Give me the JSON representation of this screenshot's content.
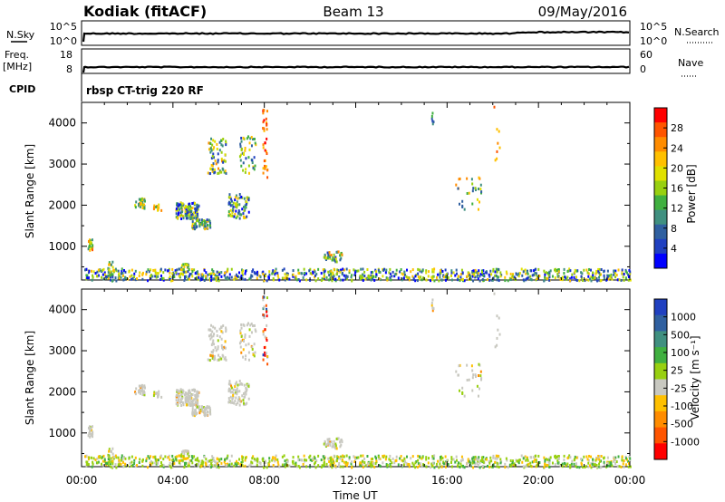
{
  "header": {
    "station": "Kodiak (fitACF)",
    "beam": "Beam 13",
    "date": "09/May/2016"
  },
  "top_panels": {
    "nsky_label": "N.Sky",
    "nsky_ticks": [
      "10^5",
      "10^0"
    ],
    "nsearch_label": "N.Search",
    "nsearch_ticks": [
      "10^5",
      "10^0"
    ],
    "freq_label": "Freq.",
    "freq_unit": "[MHz]",
    "freq_ticks": [
      "18",
      "8"
    ],
    "nave_label": "Nave",
    "nave_ticks": [
      "60",
      "0"
    ],
    "cpid_label": "CPID",
    "cpid_text": "rbsp CT-trig 220 RF"
  },
  "chart_data": [
    {
      "type": "heatmap",
      "name": "power",
      "ylabel": "Slant Range [km]",
      "yticks": [
        1000,
        2000,
        3000,
        4000
      ],
      "ylim": [
        180,
        4500
      ],
      "xlim_hours": [
        0,
        24
      ],
      "colorbar_label": "Power [dB]",
      "colorbar_ticks": [
        "28",
        "24",
        "20",
        "16",
        "12",
        "8",
        "4"
      ],
      "colorbar_colors": [
        "#ff0000",
        "#ff5500",
        "#ff8c00",
        "#ffc000",
        "#e0e000",
        "#98d010",
        "#40b040",
        "#409080",
        "#3060a0",
        "#2040c0",
        "#0000ff"
      ],
      "clusters": [
        {
          "t": [
            0.25,
            0.45
          ],
          "r": [
            900,
            1200
          ],
          "n": 24,
          "lvl": [
            1,
            7
          ]
        },
        {
          "t": [
            1.1,
            1.35
          ],
          "r": [
            180,
            650
          ],
          "n": 20,
          "lvl": [
            2,
            8
          ]
        },
        {
          "t": [
            2.3,
            2.75
          ],
          "r": [
            1950,
            2200
          ],
          "n": 30,
          "lvl": [
            2,
            7
          ]
        },
        {
          "t": [
            3.1,
            3.5
          ],
          "r": [
            1900,
            2050
          ],
          "n": 12,
          "lvl": [
            2,
            6
          ]
        },
        {
          "t": [
            4.1,
            5.1
          ],
          "r": [
            1700,
            2100
          ],
          "n": 120,
          "lvl": [
            3,
            10
          ]
        },
        {
          "t": [
            4.8,
            5.6
          ],
          "r": [
            1450,
            1700
          ],
          "n": 60,
          "lvl": [
            3,
            9
          ]
        },
        {
          "t": [
            5.5,
            6.3
          ],
          "r": [
            2800,
            3650
          ],
          "n": 70,
          "lvl": [
            2,
            9
          ]
        },
        {
          "t": [
            6.4,
            7.3
          ],
          "r": [
            1700,
            2300
          ],
          "n": 80,
          "lvl": [
            3,
            10
          ]
        },
        {
          "t": [
            6.9,
            7.6
          ],
          "r": [
            2800,
            3700
          ],
          "n": 45,
          "lvl": [
            3,
            9
          ]
        },
        {
          "t": [
            7.9,
            8.1
          ],
          "r": [
            2700,
            4400
          ],
          "n": 35,
          "lvl": [
            0,
            3
          ]
        },
        {
          "t": [
            4.3,
            4.7
          ],
          "r": [
            250,
            600
          ],
          "n": 25,
          "lvl": [
            3,
            9
          ]
        },
        {
          "t": [
            10.5,
            11.4
          ],
          "r": [
            650,
            900
          ],
          "n": 40,
          "lvl": [
            2,
            9
          ]
        },
        {
          "t": [
            16.3,
            17.5
          ],
          "r": [
            1900,
            2700
          ],
          "n": 30,
          "lvl": [
            2,
            8
          ]
        },
        {
          "t": [
            18.0,
            18.3
          ],
          "r": [
            2900,
            4450
          ],
          "n": 8,
          "lvl": [
            1,
            4
          ]
        },
        {
          "t": [
            15.3,
            15.4
          ],
          "r": [
            3900,
            4300
          ],
          "n": 6,
          "lvl": [
            6,
            10
          ]
        },
        {
          "t": [
            0.1,
            24.0
          ],
          "r": [
            190,
            480
          ],
          "n": 900,
          "lvl": [
            3,
            10
          ]
        }
      ]
    },
    {
      "type": "heatmap",
      "name": "velocity",
      "ylabel": "Slant Range [km]",
      "yticks": [
        1000,
        2000,
        3000,
        4000
      ],
      "ylim": [
        180,
        4500
      ],
      "xlim_hours": [
        0,
        24
      ],
      "xticks": [
        "00:00",
        "04:00",
        "08:00",
        "12:00",
        "16:00",
        "20:00",
        "00:00"
      ],
      "xlabel": "Time UT",
      "colorbar_label": "Velocity [m s⁻¹]",
      "colorbar_ticks": [
        "1000",
        "500",
        "100",
        "25",
        "-25",
        "-100",
        "-500",
        "-1000"
      ],
      "colorbar_colors": [
        "#2040c0",
        "#3060a0",
        "#409080",
        "#40b040",
        "#98d010",
        "#c8c8c0",
        "#ffc000",
        "#ff8c00",
        "#ff5500",
        "#ff0000"
      ]
    }
  ]
}
